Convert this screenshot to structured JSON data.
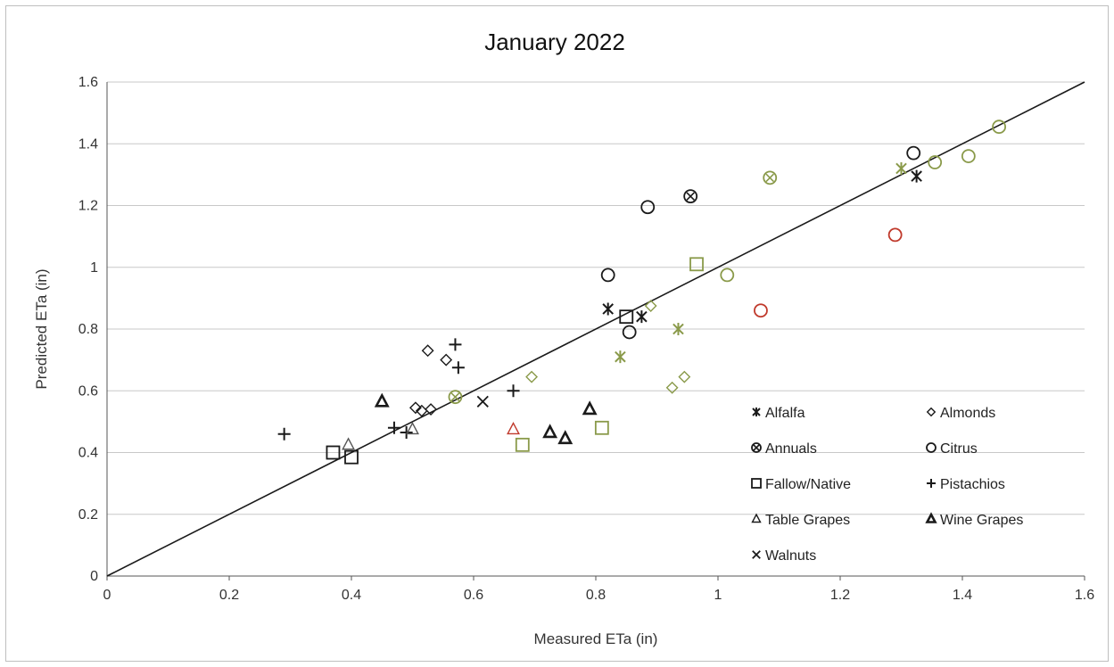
{
  "chart_data": {
    "type": "scatter",
    "title": "January 2022",
    "xlabel": "Measured ETa (in)",
    "ylabel": "Predicted ETa (in)",
    "xlim": [
      0,
      1.6
    ],
    "ylim": [
      0,
      1.6
    ],
    "x_ticks": [
      "0",
      "0.2",
      "0.4",
      "0.6",
      "0.8",
      "1",
      "1.2",
      "1.4",
      "1.6"
    ],
    "y_ticks": [
      "0",
      "0.2",
      "0.4",
      "0.6",
      "0.8",
      "1",
      "1.2",
      "1.4",
      "1.6"
    ],
    "grid": "horizontal",
    "reference_line": {
      "type": "1:1",
      "from": [
        0,
        0
      ],
      "to": [
        1.6,
        1.6
      ]
    },
    "colors": {
      "black": "#1a1a1a",
      "green": "#8a9a4a",
      "red": "#c0392b",
      "gray": "#555555"
    },
    "legend": [
      {
        "name": "Alfalfa",
        "marker": "asterisk"
      },
      {
        "name": "Almonds",
        "marker": "diamond"
      },
      {
        "name": "Annuals",
        "marker": "circle-x"
      },
      {
        "name": "Citrus",
        "marker": "circle"
      },
      {
        "name": "Fallow/Native",
        "marker": "square"
      },
      {
        "name": "Pistachios",
        "marker": "plus"
      },
      {
        "name": "Table Grapes",
        "marker": "triangle"
      },
      {
        "name": "Wine Grapes",
        "marker": "triangle-bold"
      },
      {
        "name": "Walnuts",
        "marker": "x"
      }
    ],
    "series": [
      {
        "name": "Alfalfa",
        "marker": "asterisk",
        "points": [
          {
            "x": 0.82,
            "y": 0.865,
            "color": "black"
          },
          {
            "x": 0.875,
            "y": 0.84,
            "color": "black"
          },
          {
            "x": 1.325,
            "y": 1.295,
            "color": "black"
          },
          {
            "x": 0.84,
            "y": 0.71,
            "color": "green"
          },
          {
            "x": 0.935,
            "y": 0.8,
            "color": "green"
          },
          {
            "x": 1.3,
            "y": 1.32,
            "color": "green"
          }
        ]
      },
      {
        "name": "Almonds",
        "marker": "diamond",
        "points": [
          {
            "x": 0.505,
            "y": 0.545,
            "color": "black"
          },
          {
            "x": 0.515,
            "y": 0.535,
            "color": "black"
          },
          {
            "x": 0.53,
            "y": 0.54,
            "color": "black"
          },
          {
            "x": 0.525,
            "y": 0.73,
            "color": "black"
          },
          {
            "x": 0.555,
            "y": 0.7,
            "color": "black"
          },
          {
            "x": 0.695,
            "y": 0.645,
            "color": "green"
          },
          {
            "x": 0.89,
            "y": 0.875,
            "color": "green"
          },
          {
            "x": 0.925,
            "y": 0.61,
            "color": "green"
          },
          {
            "x": 0.945,
            "y": 0.645,
            "color": "green"
          }
        ]
      },
      {
        "name": "Annuals",
        "marker": "circle-x",
        "points": [
          {
            "x": 0.955,
            "y": 1.23,
            "color": "black"
          },
          {
            "x": 0.57,
            "y": 0.58,
            "color": "green"
          },
          {
            "x": 1.085,
            "y": 1.29,
            "color": "green"
          }
        ]
      },
      {
        "name": "Citrus",
        "marker": "circle",
        "points": [
          {
            "x": 0.82,
            "y": 0.975,
            "color": "black"
          },
          {
            "x": 0.885,
            "y": 1.195,
            "color": "black"
          },
          {
            "x": 0.855,
            "y": 0.79,
            "color": "black"
          },
          {
            "x": 1.32,
            "y": 1.37,
            "color": "black"
          },
          {
            "x": 1.015,
            "y": 0.975,
            "color": "green"
          },
          {
            "x": 1.355,
            "y": 1.34,
            "color": "green"
          },
          {
            "x": 1.41,
            "y": 1.36,
            "color": "green"
          },
          {
            "x": 1.46,
            "y": 1.455,
            "color": "green"
          },
          {
            "x": 1.07,
            "y": 0.86,
            "color": "red"
          },
          {
            "x": 1.29,
            "y": 1.105,
            "color": "red"
          }
        ]
      },
      {
        "name": "Fallow/Native",
        "marker": "square",
        "points": [
          {
            "x": 0.37,
            "y": 0.4,
            "color": "black"
          },
          {
            "x": 0.4,
            "y": 0.385,
            "color": "black"
          },
          {
            "x": 0.85,
            "y": 0.84,
            "color": "black"
          },
          {
            "x": 0.68,
            "y": 0.425,
            "color": "green"
          },
          {
            "x": 0.81,
            "y": 0.48,
            "color": "green"
          },
          {
            "x": 0.965,
            "y": 1.01,
            "color": "green"
          }
        ]
      },
      {
        "name": "Pistachios",
        "marker": "plus",
        "points": [
          {
            "x": 0.29,
            "y": 0.46,
            "color": "black"
          },
          {
            "x": 0.47,
            "y": 0.48,
            "color": "black"
          },
          {
            "x": 0.49,
            "y": 0.465,
            "color": "black"
          },
          {
            "x": 0.57,
            "y": 0.75,
            "color": "black"
          },
          {
            "x": 0.575,
            "y": 0.675,
            "color": "black"
          },
          {
            "x": 0.665,
            "y": 0.6,
            "color": "black"
          }
        ]
      },
      {
        "name": "Table Grapes",
        "marker": "triangle",
        "points": [
          {
            "x": 0.395,
            "y": 0.425,
            "color": "gray"
          },
          {
            "x": 0.5,
            "y": 0.475,
            "color": "gray"
          },
          {
            "x": 0.665,
            "y": 0.475,
            "color": "red"
          }
        ]
      },
      {
        "name": "Wine Grapes",
        "marker": "triangle-bold",
        "points": [
          {
            "x": 0.45,
            "y": 0.565,
            "color": "black"
          },
          {
            "x": 0.725,
            "y": 0.465,
            "color": "black"
          },
          {
            "x": 0.75,
            "y": 0.445,
            "color": "black"
          },
          {
            "x": 0.79,
            "y": 0.54,
            "color": "black"
          }
        ]
      },
      {
        "name": "Walnuts",
        "marker": "x",
        "points": [
          {
            "x": 0.615,
            "y": 0.565,
            "color": "black"
          }
        ]
      }
    ]
  }
}
